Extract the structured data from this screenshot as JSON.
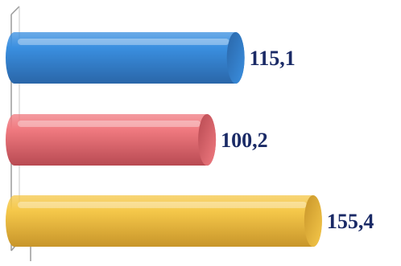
{
  "chart_data": {
    "type": "bar",
    "orientation": "horizontal",
    "categories": [
      "",
      "",
      ""
    ],
    "values": [
      115.1,
      100.2,
      155.4
    ],
    "labels": [
      "115,1",
      "100,2",
      "155,4"
    ],
    "xlim": [
      0,
      176
    ],
    "grid": false,
    "title": "",
    "xlabel": "",
    "ylabel": "",
    "colors": [
      "#3a8fe0",
      "#f07a80",
      "#f5c84a"
    ],
    "end_colors": [
      "#2a66a8",
      "#b84a52",
      "#c8952a"
    ],
    "label_color": "#1a2a66",
    "axis_color": "#9a9a9a"
  }
}
